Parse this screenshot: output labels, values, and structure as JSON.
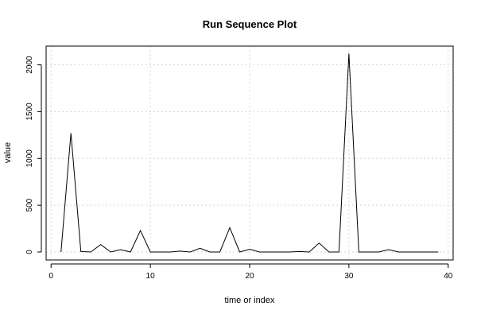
{
  "chart_data": {
    "type": "line",
    "title": "Run Sequence Plot",
    "xlabel": "time or index",
    "ylabel": "value",
    "xlim": [
      -0.5,
      40.5
    ],
    "ylim": [
      -85,
      2200
    ],
    "xticks": [
      0,
      10,
      20,
      30,
      40
    ],
    "yticks": [
      0,
      500,
      1000,
      1500,
      2000
    ],
    "grid": true,
    "legend": "none",
    "colors": {
      "line": "#000000",
      "grid": "#d8d8d8"
    },
    "x": [
      1,
      2,
      3,
      4,
      5,
      6,
      7,
      8,
      9,
      10,
      11,
      12,
      13,
      14,
      15,
      16,
      17,
      18,
      19,
      20,
      21,
      22,
      23,
      24,
      25,
      26,
      27,
      28,
      29,
      30,
      31,
      32,
      33,
      34,
      35,
      36,
      37,
      38,
      39
    ],
    "values": [
      0,
      1270,
      5,
      0,
      80,
      0,
      25,
      0,
      230,
      0,
      0,
      0,
      10,
      0,
      40,
      0,
      0,
      260,
      0,
      30,
      0,
      0,
      0,
      0,
      5,
      0,
      95,
      0,
      0,
      2120,
      0,
      0,
      0,
      25,
      0,
      0,
      0,
      0,
      0
    ]
  }
}
